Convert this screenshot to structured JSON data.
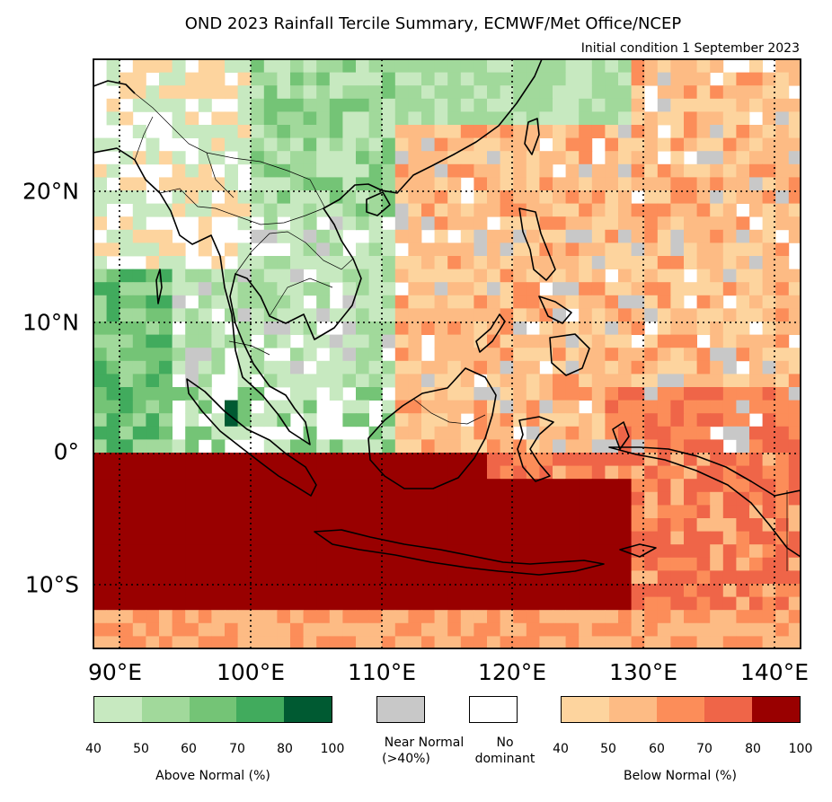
{
  "title": "OND 2023 Rainfall Tercile Summary, ECMWF/Met Office/NCEP",
  "subtitle": "Initial condition 1 September 2023",
  "lon_labels": [
    "90°E",
    "100°E",
    "110°E",
    "120°E",
    "130°E",
    "140°E"
  ],
  "lat_labels": [
    "20°N",
    "10°N",
    "0°",
    "10°S"
  ],
  "legend": {
    "above": {
      "caption": "Above Normal (%)",
      "ticks": [
        "40",
        "50",
        "60",
        "70",
        "80",
        "100"
      ],
      "colors": [
        "#c7e9c0",
        "#a1d99b",
        "#74c476",
        "#41ab5d",
        "#005a32"
      ]
    },
    "near_normal": {
      "caption_line1": "Near Normal",
      "caption_line2": "(>40%)",
      "color": "#c8c8c8"
    },
    "no_dominant": {
      "caption_line1": "No",
      "caption_line2": "dominant",
      "color": "#ffffff"
    },
    "below": {
      "caption": "Below Normal (%)",
      "ticks": [
        "40",
        "50",
        "60",
        "70",
        "80",
        "100"
      ],
      "colors": [
        "#fdd49e",
        "#fdbb84",
        "#fc8d59",
        "#ef6548",
        "#990000"
      ]
    }
  },
  "map_extent": {
    "lon_min": 88,
    "lon_max": 142,
    "lat_min": -15,
    "lat_max": 30
  }
}
